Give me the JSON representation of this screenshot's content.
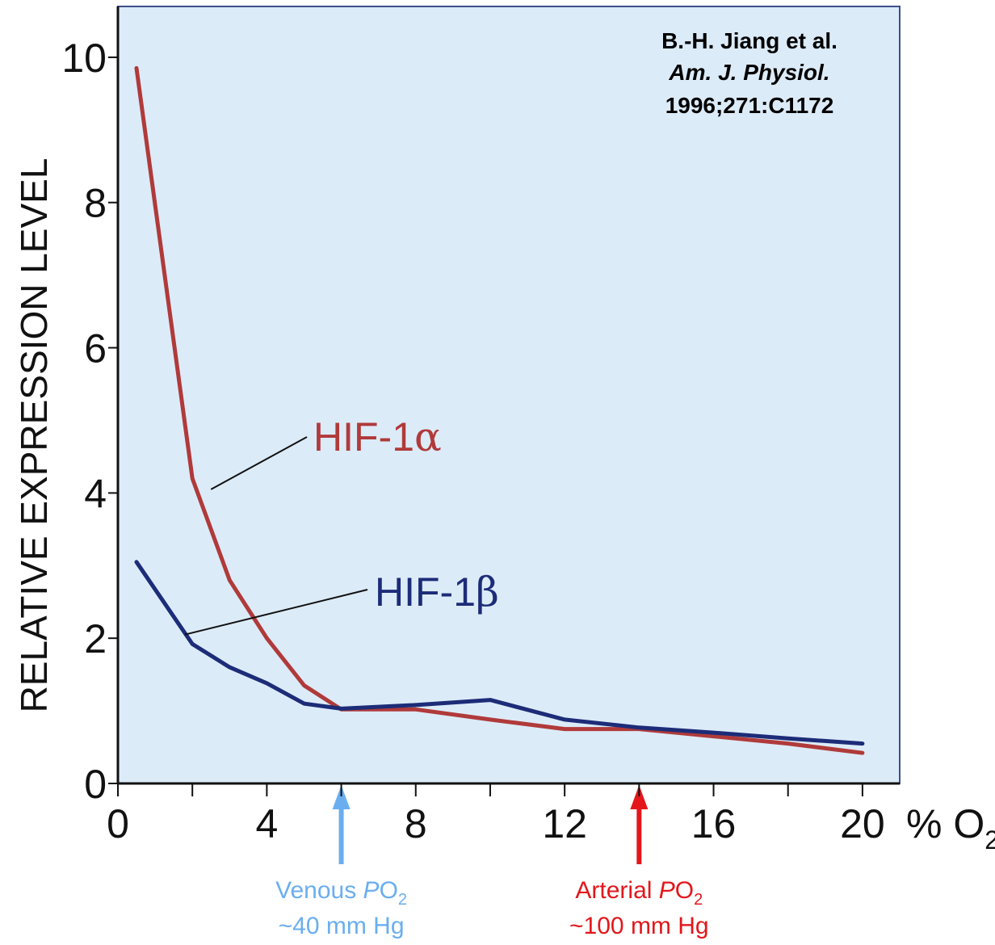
{
  "chart_data": {
    "type": "line",
    "ylabel": "RELATIVE EXPRESSION LEVEL",
    "xunit": "% O",
    "xunit_sub": "2",
    "xlim": [
      0,
      21
    ],
    "ylim": [
      0,
      10.7
    ],
    "x_ticks": [
      0,
      4,
      8,
      12,
      16,
      20
    ],
    "x_tick_labels": [
      "0",
      "4",
      "8",
      "12",
      "16",
      "20"
    ],
    "x_minor_ticks": [
      2,
      6,
      10,
      14,
      18
    ],
    "y_ticks": [
      0,
      2,
      4,
      6,
      8,
      10
    ],
    "y_tick_labels": [
      "0",
      "2",
      "4",
      "6",
      "8",
      "10"
    ],
    "grid": false,
    "background": "#dcebf8",
    "series": [
      {
        "name": "HIF-1α",
        "label_prefix": "HIF-1",
        "label_greek": "α",
        "color": "#b03a3a",
        "x": [
          0.5,
          2,
          3,
          4,
          5,
          6,
          8,
          10,
          12,
          14,
          16,
          18,
          20
        ],
        "y": [
          9.85,
          4.2,
          2.8,
          2.0,
          1.35,
          1.02,
          1.02,
          0.88,
          0.75,
          0.75,
          0.65,
          0.55,
          0.42
        ]
      },
      {
        "name": "HIF-1β",
        "label_prefix": "HIF-1",
        "label_greek": "β",
        "color": "#1c2c78",
        "x": [
          0.5,
          2,
          3,
          4,
          5,
          6,
          8,
          10,
          12,
          14,
          16,
          18,
          20
        ],
        "y": [
          3.05,
          1.92,
          1.6,
          1.38,
          1.1,
          1.03,
          1.08,
          1.15,
          0.88,
          0.77,
          0.7,
          0.62,
          0.55
        ]
      }
    ],
    "citation": {
      "line1": "B.-H. Jiang et al.",
      "line2": "Am. J. Physiol.",
      "line3": "1996;271:C1172"
    },
    "annotations": [
      {
        "x": 6,
        "color": "#6aaef0",
        "line1_prefix": "Venous ",
        "line1_italic": "P",
        "line1_main": "O",
        "line1_sub": "2",
        "line2": "~40 mm Hg"
      },
      {
        "x": 14,
        "color": "#e3171b",
        "line1_prefix": "Arterial ",
        "line1_italic": "P",
        "line1_main": "O",
        "line1_sub": "2",
        "line2": "~100 mm Hg"
      }
    ]
  }
}
